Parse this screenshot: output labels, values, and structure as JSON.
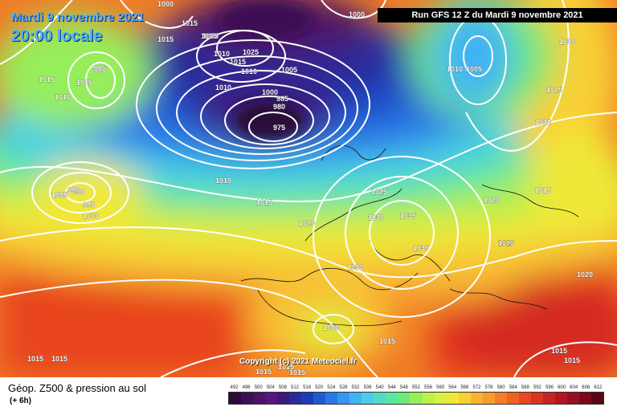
{
  "header": {
    "date": "Mardi 9 novembre 2021",
    "local_time": "20:00 locale",
    "run": "Run GFS 12 Z du Mardi 9 novembre 2021"
  },
  "copyright": "Copyright (c) 2021 Meteociel.fr",
  "footer": {
    "title": "Géop. Z500 & pression au sol",
    "step": "(+ 6h)"
  },
  "scale": {
    "labels": [
      "492",
      "496",
      "500",
      "504",
      "508",
      "512",
      "516",
      "520",
      "524",
      "528",
      "532",
      "536",
      "540",
      "544",
      "548",
      "552",
      "556",
      "560",
      "564",
      "568",
      "572",
      "576",
      "580",
      "584",
      "588",
      "592",
      "596",
      "600",
      "604",
      "608",
      "612"
    ],
    "colors": [
      "#2a0a3a",
      "#3c0f52",
      "#4b1266",
      "#5a167a",
      "#3a1a80",
      "#2a2a9a",
      "#1f3cb8",
      "#1e5ad2",
      "#2a78e6",
      "#3596f0",
      "#40b4f4",
      "#4acde8",
      "#52dcc8",
      "#5ae6a0",
      "#6ee878",
      "#96ee5a",
      "#bef046",
      "#dcf03c",
      "#f0e838",
      "#f8d034",
      "#f8b430",
      "#f89a2c",
      "#f47e28",
      "#ee6224",
      "#e84820",
      "#dc3220",
      "#c82222",
      "#b01820",
      "#961020",
      "#7a0a1c",
      "#5a0616"
    ]
  },
  "pressure_labels": [
    "1000",
    "1005",
    "1015",
    "1015",
    "1005",
    "1010",
    "1025",
    "1015",
    "1010",
    "1005",
    "1010",
    "1000",
    "985",
    "980",
    "975",
    "1000",
    "1010",
    "1005",
    "1030",
    "1025",
    "1020",
    "1015",
    "1005",
    "990",
    "990",
    "995",
    "1000",
    "1010",
    "1015",
    "1020",
    "1025",
    "1030",
    "1035",
    "1020",
    "1015",
    "1020",
    "1035",
    "1030",
    "1020",
    "1000",
    "1015",
    "1015",
    "1015",
    "1015",
    "1015",
    "1015",
    "1015",
    "1020",
    "1015",
    "1010",
    "1005",
    "995",
    "990"
  ]
}
